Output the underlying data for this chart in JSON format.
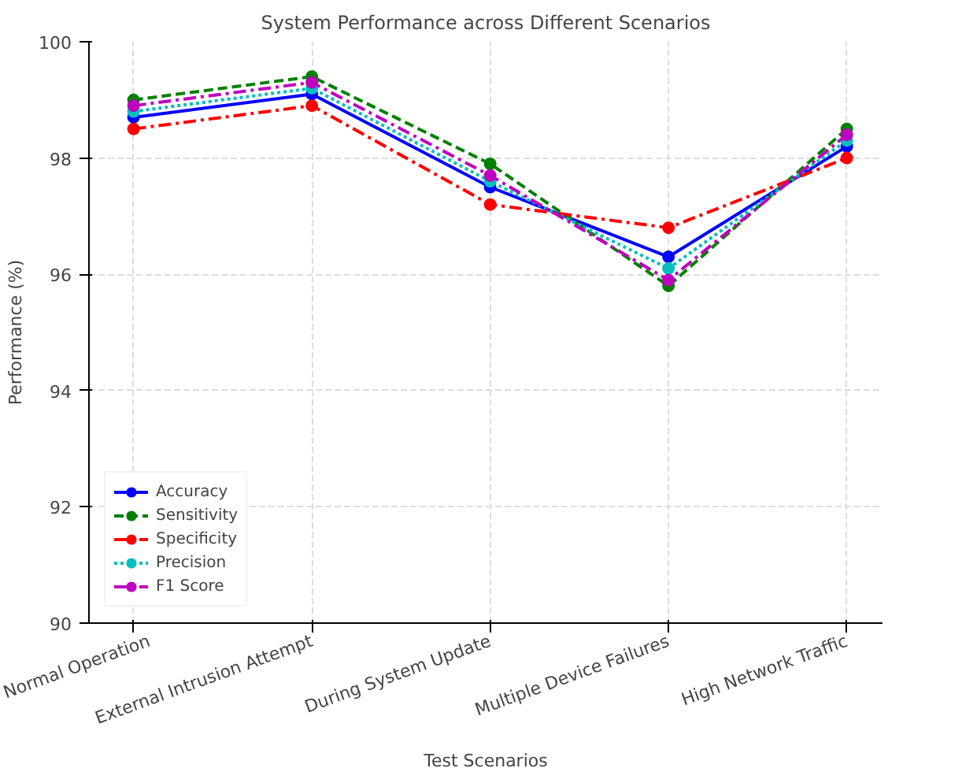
{
  "chart_data": {
    "type": "line",
    "title": "System Performance across Different Scenarios",
    "xlabel": "Test Scenarios",
    "ylabel": "Performance (%)",
    "categories": [
      "Normal Operation",
      "External Intrusion Attempt",
      "During System Update",
      "Multiple Device Failures",
      "High Network Traffic"
    ],
    "series": [
      {
        "name": "Accuracy",
        "color": "#0000ff",
        "line_style": "solid",
        "values": [
          98.7,
          99.1,
          97.5,
          96.3,
          98.2
        ]
      },
      {
        "name": "Sensitivity",
        "color": "#008000",
        "line_style": "dashed",
        "values": [
          99.0,
          99.4,
          97.9,
          95.8,
          98.5
        ]
      },
      {
        "name": "Specificity",
        "color": "#ff0000",
        "line_style": "dashdot",
        "values": [
          98.5,
          98.9,
          97.2,
          96.8,
          98.0
        ]
      },
      {
        "name": "Precision",
        "color": "#00bfbf",
        "line_style": "dotted",
        "values": [
          98.8,
          99.2,
          97.6,
          96.1,
          98.3
        ]
      },
      {
        "name": "F1 Score",
        "color": "#bf00bf",
        "line_style": "dashdot",
        "values": [
          98.9,
          99.3,
          97.7,
          95.9,
          98.4
        ]
      }
    ],
    "ylim": [
      90,
      100
    ],
    "yticks": [
      90,
      92,
      94,
      96,
      98,
      100
    ],
    "grid": true,
    "legend": "bottom left",
    "marker": "circle"
  }
}
